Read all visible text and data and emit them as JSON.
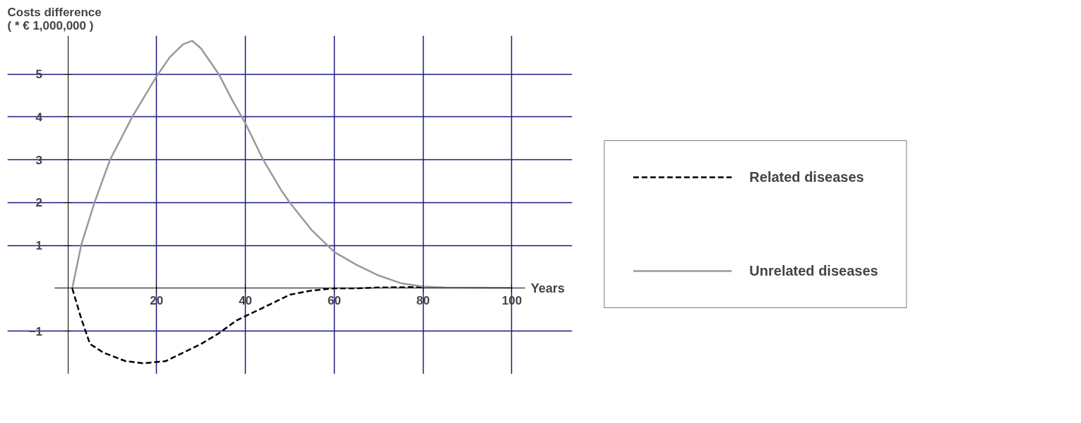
{
  "chart_data": {
    "type": "line",
    "ylabel": "Costs difference\n( * € 1,000,000 )",
    "xlabel": "Years",
    "xlim": [
      -3,
      103
    ],
    "ylim": [
      -2,
      5.9
    ],
    "xticks": [
      20,
      40,
      60,
      80,
      100
    ],
    "yticks": [
      -1,
      1,
      2,
      3,
      4,
      5
    ],
    "grid": true,
    "legend": "right",
    "series": [
      {
        "name": "Related diseases",
        "color": "#000000",
        "line_style": "dashed",
        "x": [
          1,
          3,
          5,
          8,
          13,
          17,
          22,
          26,
          30,
          34,
          38,
          42,
          46,
          50,
          55,
          60,
          65,
          70,
          80
        ],
        "values": [
          0,
          -0.7,
          -1.3,
          -1.5,
          -1.7,
          -1.75,
          -1.7,
          -1.5,
          -1.3,
          -1.05,
          -0.75,
          -0.55,
          -0.35,
          -0.15,
          -0.05,
          0,
          0,
          0.02,
          0.03
        ]
      },
      {
        "name": "Unrelated diseases",
        "color": "#999999",
        "line_style": "solid",
        "x": [
          1,
          3,
          6,
          9.5,
          14.5,
          20,
          23,
          26,
          28,
          30,
          34,
          37,
          40,
          44,
          48,
          50,
          55,
          60,
          65,
          70,
          75,
          80,
          85,
          100
        ],
        "values": [
          0,
          1,
          2,
          3,
          4,
          4.95,
          5.4,
          5.7,
          5.78,
          5.6,
          5.0,
          4.4,
          3.85,
          3.0,
          2.3,
          2.0,
          1.35,
          0.85,
          0.55,
          0.3,
          0.12,
          0.04,
          0.02,
          0.01
        ]
      }
    ]
  }
}
